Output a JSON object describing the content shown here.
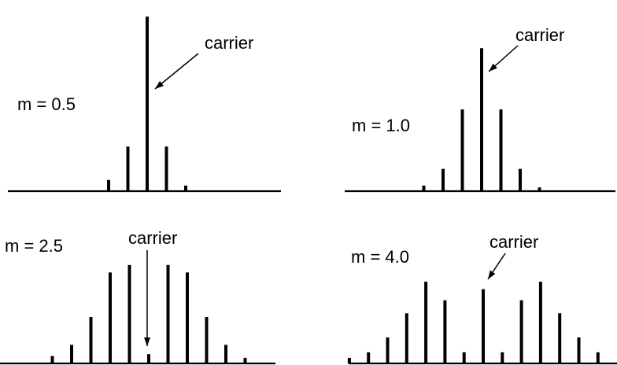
{
  "chart_data": [
    {
      "type": "bar",
      "label": "m = 0.5",
      "annotation": "carrier",
      "x": [
        -2,
        -1,
        0,
        1,
        2
      ],
      "values": [
        0.06,
        0.24,
        0.94,
        0.24,
        0.03
      ],
      "carrier_index": 2,
      "ylim": [
        0,
        1
      ]
    },
    {
      "type": "bar",
      "label": "m = 1.0",
      "annotation": "carrier",
      "x": [
        -3,
        -2,
        -1,
        0,
        1,
        2,
        3
      ],
      "values": [
        0.03,
        0.12,
        0.44,
        0.77,
        0.44,
        0.12,
        0.02
      ],
      "carrier_index": 3,
      "ylim": [
        0,
        1
      ]
    },
    {
      "type": "bar",
      "label": "m = 2.5",
      "annotation": "carrier",
      "x": [
        -5,
        -4,
        -3,
        -2,
        -1,
        0,
        1,
        2,
        3,
        4,
        5
      ],
      "values": [
        0.04,
        0.1,
        0.25,
        0.49,
        0.53,
        0.05,
        0.53,
        0.49,
        0.25,
        0.1,
        0.03
      ],
      "carrier_index": 5,
      "ylim": [
        0,
        1
      ]
    },
    {
      "type": "bar",
      "label": "m = 4.0",
      "annotation": "carrier",
      "x": [
        -7,
        -6,
        -5,
        -4,
        -3,
        -2,
        -1,
        0,
        1,
        2,
        3,
        4,
        5,
        6
      ],
      "values": [
        0.03,
        0.06,
        0.14,
        0.27,
        0.44,
        0.34,
        0.06,
        0.4,
        0.06,
        0.34,
        0.44,
        0.27,
        0.14,
        0.06
      ],
      "carrier_index": 7,
      "ylim": [
        0,
        1
      ]
    }
  ]
}
